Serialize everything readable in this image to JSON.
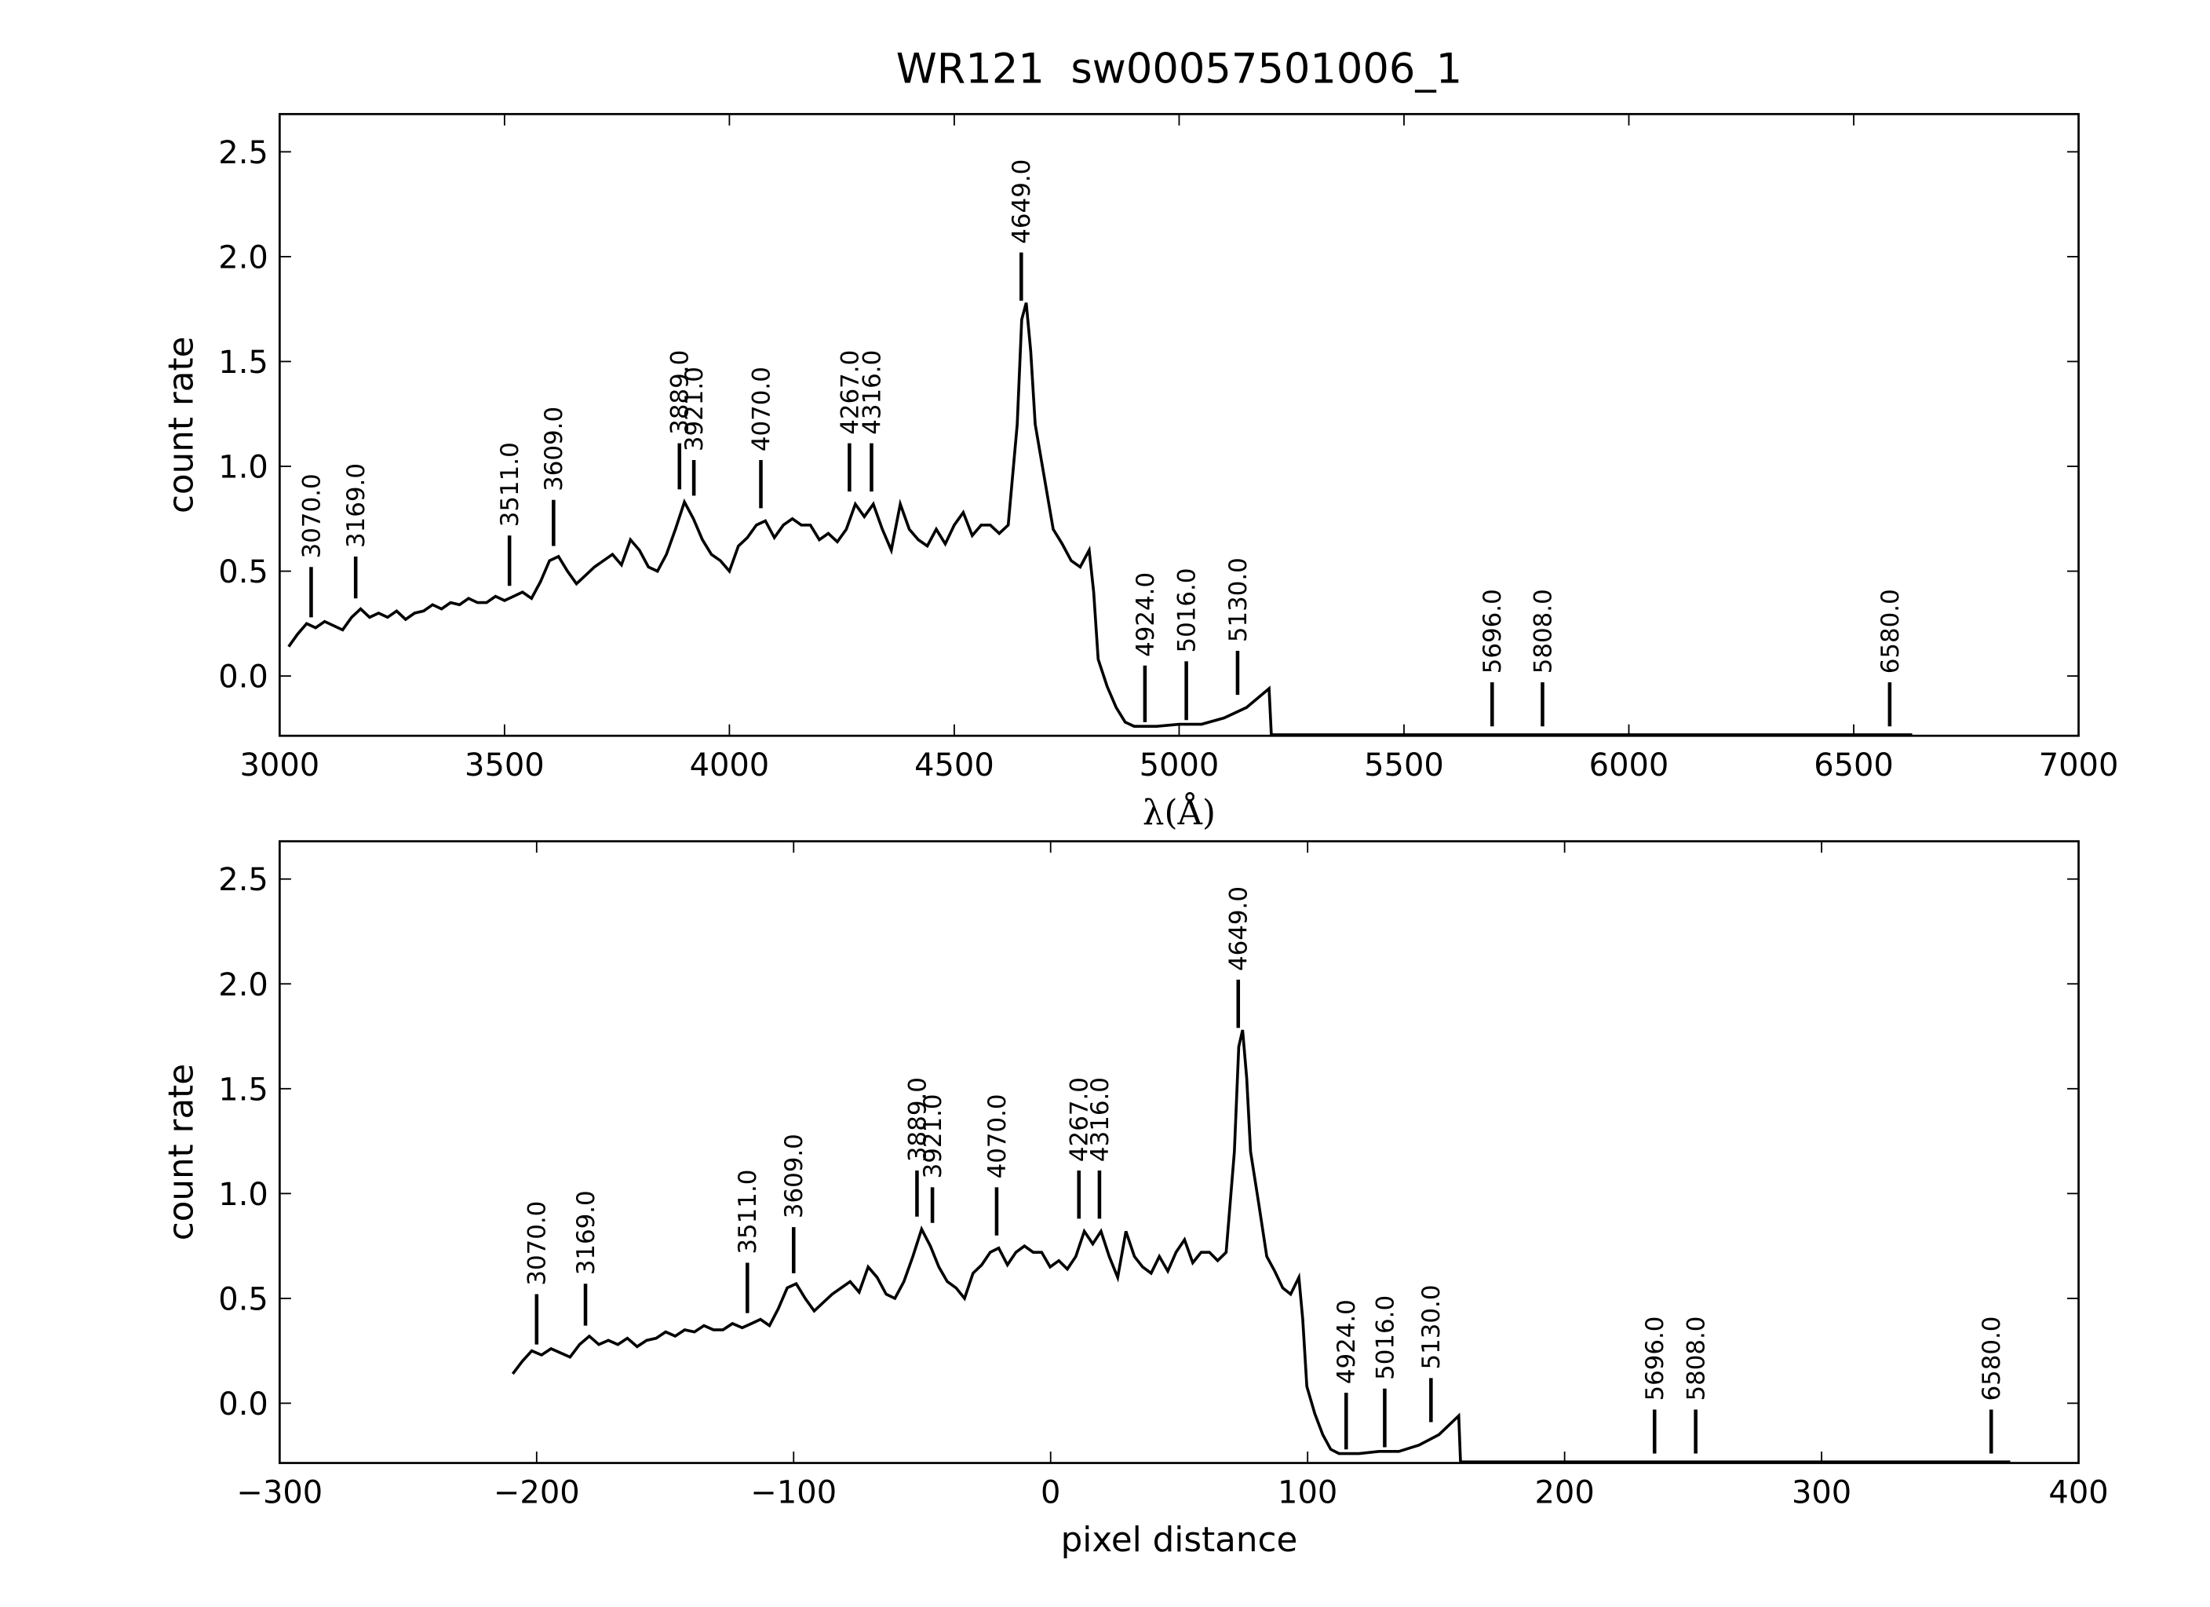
{
  "chart_data": [
    {
      "type": "line",
      "title": "WR121  sw00057501006_1",
      "xlabel": "λ(Å)",
      "ylabel": "count rate",
      "xlim": [
        3000,
        7000
      ],
      "ylim": [
        -0.285,
        2.68
      ],
      "xticks": [
        3000,
        3500,
        4000,
        4500,
        5000,
        5500,
        6000,
        6500,
        7000
      ],
      "yticks": [
        {
          "value": 0,
          "label": "0.0"
        },
        {
          "value": 0.5,
          "label": "0.5"
        },
        {
          "value": 1,
          "label": "1.0"
        },
        {
          "value": 1.5,
          "label": "1.5"
        },
        {
          "value": 2,
          "label": "2.0"
        },
        {
          "value": 2.5,
          "label": "2.5"
        }
      ],
      "series": [
        {
          "color": "#000000",
          "x": [
            3020,
            3040,
            3060,
            3080,
            3100,
            3120,
            3140,
            3160,
            3180,
            3200,
            3220,
            3240,
            3260,
            3280,
            3300,
            3320,
            3340,
            3360,
            3380,
            3400,
            3420,
            3440,
            3460,
            3480,
            3500,
            3520,
            3540,
            3560,
            3580,
            3600,
            3620,
            3640,
            3660,
            3680,
            3700,
            3720,
            3740,
            3760,
            3780,
            3800,
            3820,
            3840,
            3860,
            3880,
            3900,
            3920,
            3940,
            3960,
            3980,
            4000,
            4020,
            4040,
            4060,
            4080,
            4100,
            4120,
            4140,
            4160,
            4180,
            4200,
            4220,
            4240,
            4260,
            4280,
            4300,
            4320,
            4340,
            4360,
            4380,
            4400,
            4420,
            4440,
            4460,
            4480,
            4500,
            4520,
            4540,
            4560,
            4580,
            4600,
            4620,
            4640,
            4650,
            4660,
            4670,
            4680,
            4700,
            4720,
            4740,
            4760,
            4780,
            4800,
            4810,
            4820,
            4840,
            4860,
            4880,
            4900,
            4950,
            5000,
            5050,
            5100,
            5150,
            5200,
            5205,
            6630
          ],
          "values": [
            0.14,
            0.2,
            0.25,
            0.23,
            0.26,
            0.24,
            0.22,
            0.28,
            0.32,
            0.28,
            0.3,
            0.28,
            0.31,
            0.27,
            0.3,
            0.31,
            0.34,
            0.32,
            0.35,
            0.34,
            0.37,
            0.35,
            0.35,
            0.38,
            0.36,
            0.38,
            0.4,
            0.37,
            0.45,
            0.55,
            0.57,
            0.5,
            0.44,
            0.48,
            0.52,
            0.55,
            0.58,
            0.53,
            0.65,
            0.6,
            0.52,
            0.5,
            0.58,
            0.7,
            0.83,
            0.75,
            0.65,
            0.58,
            0.55,
            0.5,
            0.62,
            0.66,
            0.72,
            0.74,
            0.66,
            0.72,
            0.75,
            0.72,
            0.72,
            0.65,
            0.68,
            0.64,
            0.7,
            0.82,
            0.76,
            0.82,
            0.7,
            0.6,
            0.82,
            0.7,
            0.65,
            0.62,
            0.7,
            0.63,
            0.72,
            0.78,
            0.67,
            0.72,
            0.72,
            0.68,
            0.72,
            1.2,
            1.7,
            1.78,
            1.55,
            1.2,
            0.95,
            0.7,
            0.63,
            0.55,
            0.52,
            0.6,
            0.4,
            0.08,
            -0.05,
            -0.15,
            -0.22,
            -0.24,
            -0.24,
            -0.23,
            -0.23,
            -0.2,
            -0.15,
            -0.06,
            -0.28,
            -0.28
          ]
        }
      ],
      "annotations": [
        {
          "label": "3070.0",
          "x": 3070,
          "ymin": 0.28,
          "ymax": 0.52
        },
        {
          "label": "3169.0",
          "x": 3169,
          "ymin": 0.37,
          "ymax": 0.57
        },
        {
          "label": "3511.0",
          "x": 3511,
          "ymin": 0.43,
          "ymax": 0.67
        },
        {
          "label": "3609.0",
          "x": 3609,
          "ymin": 0.62,
          "ymax": 0.84
        },
        {
          "label": "3889.0",
          "x": 3889,
          "ymin": 0.89,
          "ymax": 1.11
        },
        {
          "label": "3921.0",
          "x": 3921,
          "ymin": 0.86,
          "ymax": 1.03
        },
        {
          "label": "4070.0",
          "x": 4070,
          "ymin": 0.8,
          "ymax": 1.03
        },
        {
          "label": "4267.0",
          "x": 4267,
          "ymin": 0.88,
          "ymax": 1.11
        },
        {
          "label": "4316.0",
          "x": 4316,
          "ymin": 0.88,
          "ymax": 1.11
        },
        {
          "label": "4649.0",
          "x": 4649,
          "ymin": 1.79,
          "ymax": 2.02
        },
        {
          "label": "4924.0",
          "x": 4924,
          "ymin": -0.22,
          "ymax": 0.05
        },
        {
          "label": "5016.0",
          "x": 5016,
          "ymin": -0.21,
          "ymax": 0.07
        },
        {
          "label": "5130.0",
          "x": 5130,
          "ymin": -0.09,
          "ymax": 0.12
        },
        {
          "label": "5696.0",
          "x": 5696,
          "ymin": -0.24,
          "ymax": -0.03
        },
        {
          "label": "5808.0",
          "x": 5808,
          "ymin": -0.24,
          "ymax": -0.03
        },
        {
          "label": "6580.0",
          "x": 6580,
          "ymin": -0.24,
          "ymax": -0.03
        }
      ]
    },
    {
      "type": "line",
      "xlabel": "pixel distance",
      "ylabel": "count rate",
      "xlim": [
        -300,
        400
      ],
      "ylim": [
        -0.285,
        2.68
      ],
      "xticks": [
        {
          "value": -300,
          "label": "−300"
        },
        {
          "value": -200,
          "label": "−200"
        },
        {
          "value": -100,
          "label": "−100"
        },
        0,
        100,
        200,
        300,
        400
      ],
      "yticks": [
        {
          "value": 0,
          "label": "0.0"
        },
        {
          "value": 0.5,
          "label": "0.5"
        },
        {
          "value": 1,
          "label": "1.0"
        },
        {
          "value": 1.5,
          "label": "1.5"
        },
        {
          "value": 2,
          "label": "2.0"
        },
        {
          "value": 2.5,
          "label": "2.5"
        }
      ],
      "series": [
        {
          "color": "#000000",
          "x": [
            -209.3,
            -205.6,
            -201.9,
            -198.1,
            -194.4,
            -190.7,
            -187,
            -183.3,
            -179.5,
            -175.8,
            -172.1,
            -168.4,
            -164.7,
            -160.9,
            -157.2,
            -153.5,
            -149.8,
            -146.1,
            -142.4,
            -138.6,
            -134.9,
            -131.2,
            -127.5,
            -123.8,
            -120,
            -116.4,
            -112.9,
            -109.4,
            -106,
            -102.5,
            -99,
            -95.5,
            -92,
            -88.5,
            -85,
            -81.5,
            -78,
            -74.5,
            -71,
            -67.5,
            -64,
            -60.6,
            -57.1,
            -53.6,
            -50.2,
            -46.8,
            -43.5,
            -40.2,
            -36.8,
            -33.5,
            -30.2,
            -26.8,
            -23.5,
            -20.2,
            -16.8,
            -13.5,
            -10.2,
            -6.8,
            -3.5,
            -0.2,
            3.2,
            6.5,
            9.8,
            13.1,
            16.4,
            19.6,
            22.8,
            26.1,
            29.3,
            32.6,
            35.8,
            39.1,
            42.3,
            45.6,
            48.8,
            52.1,
            55.3,
            58.6,
            61.8,
            65,
            68.3,
            71.5,
            73.2,
            74.7,
            76.3,
            77.8,
            81,
            84.1,
            87.2,
            90.3,
            93.4,
            96.6,
            98.1,
            99.7,
            102.8,
            105.9,
            109,
            112.2,
            120,
            127.8,
            135.5,
            143.3,
            151.1,
            158.8,
            159.5,
            373.4
          ],
          "values": [
            0.14,
            0.2,
            0.25,
            0.23,
            0.26,
            0.24,
            0.22,
            0.28,
            0.32,
            0.28,
            0.3,
            0.28,
            0.31,
            0.27,
            0.3,
            0.31,
            0.34,
            0.32,
            0.35,
            0.34,
            0.37,
            0.35,
            0.35,
            0.38,
            0.36,
            0.38,
            0.4,
            0.37,
            0.45,
            0.55,
            0.57,
            0.5,
            0.44,
            0.48,
            0.52,
            0.55,
            0.58,
            0.53,
            0.65,
            0.6,
            0.52,
            0.5,
            0.58,
            0.7,
            0.83,
            0.75,
            0.65,
            0.58,
            0.55,
            0.5,
            0.62,
            0.66,
            0.72,
            0.74,
            0.66,
            0.72,
            0.75,
            0.72,
            0.72,
            0.65,
            0.68,
            0.64,
            0.7,
            0.82,
            0.76,
            0.82,
            0.7,
            0.6,
            0.82,
            0.7,
            0.65,
            0.62,
            0.7,
            0.63,
            0.72,
            0.78,
            0.67,
            0.72,
            0.72,
            0.68,
            0.72,
            1.2,
            1.7,
            1.78,
            1.55,
            1.2,
            0.95,
            0.7,
            0.63,
            0.55,
            0.52,
            0.6,
            0.4,
            0.08,
            -0.05,
            -0.15,
            -0.22,
            -0.24,
            -0.24,
            -0.23,
            -0.23,
            -0.2,
            -0.15,
            -0.06,
            -0.28,
            -0.28
          ]
        }
      ],
      "annotations": [
        {
          "label": "3070.0",
          "x": -200,
          "ymin": 0.28,
          "ymax": 0.52
        },
        {
          "label": "3169.0",
          "x": -181,
          "ymin": 0.37,
          "ymax": 0.57
        },
        {
          "label": "3511.0",
          "x": -118,
          "ymin": 0.43,
          "ymax": 0.67
        },
        {
          "label": "3609.0",
          "x": -100,
          "ymin": 0.62,
          "ymax": 0.84
        },
        {
          "label": "3889.0",
          "x": -52,
          "ymin": 0.89,
          "ymax": 1.11
        },
        {
          "label": "3921.0",
          "x": -46,
          "ymin": 0.86,
          "ymax": 1.03
        },
        {
          "label": "4070.0",
          "x": -21,
          "ymin": 0.8,
          "ymax": 1.03
        },
        {
          "label": "4267.0",
          "x": 11,
          "ymin": 0.88,
          "ymax": 1.11
        },
        {
          "label": "4316.0",
          "x": 19,
          "ymin": 0.88,
          "ymax": 1.11
        },
        {
          "label": "4649.0",
          "x": 73,
          "ymin": 1.79,
          "ymax": 2.02
        },
        {
          "label": "4924.0",
          "x": 115,
          "ymin": -0.22,
          "ymax": 0.05
        },
        {
          "label": "5016.0",
          "x": 130,
          "ymin": -0.21,
          "ymax": 0.07
        },
        {
          "label": "5130.0",
          "x": 148,
          "ymin": -0.09,
          "ymax": 0.12
        },
        {
          "label": "5696.0",
          "x": 235,
          "ymin": -0.24,
          "ymax": -0.03
        },
        {
          "label": "5808.0",
          "x": 251,
          "ymin": -0.24,
          "ymax": -0.03
        },
        {
          "label": "6580.0",
          "x": 366,
          "ymin": -0.24,
          "ymax": -0.03
        }
      ]
    }
  ]
}
